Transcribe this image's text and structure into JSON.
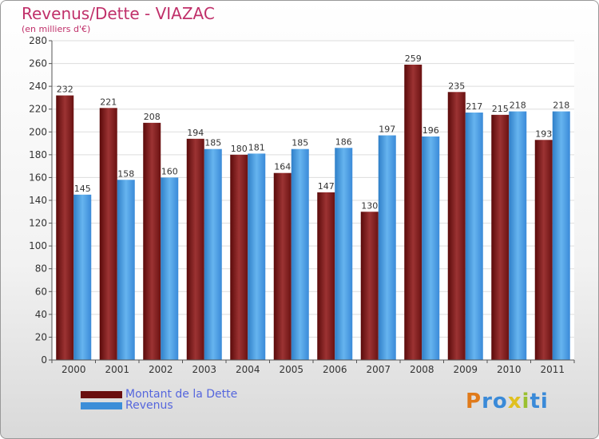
{
  "chart_data": {
    "type": "bar",
    "title": "Revenus/Dette - VIAZAC",
    "subtitle": "(en milliers d'€)",
    "categories": [
      "2000",
      "2001",
      "2002",
      "2003",
      "2004",
      "2005",
      "2006",
      "2007",
      "2008",
      "2009",
      "2010",
      "2011"
    ],
    "series": [
      {
        "name": "Montant de la Dette",
        "values": [
          232,
          221,
          208,
          194,
          180,
          164,
          147,
          130,
          259,
          235,
          215,
          193
        ]
      },
      {
        "name": "Revenus",
        "values": [
          145,
          158,
          160,
          185,
          181,
          185,
          186,
          197,
          196,
          217,
          218,
          218
        ]
      }
    ],
    "ylim": [
      0,
      280
    ],
    "ytick_step": 20,
    "grid": true,
    "legend": "bottom-left",
    "colors": {
      "debt": "#7a1a1a",
      "debt_light": "#9c3333",
      "revenue": "#3c8ed8",
      "revenue_light": "#62b0ee"
    }
  },
  "logo": {
    "letters": [
      "P",
      "r",
      "o",
      "x",
      "i",
      "t",
      "i"
    ],
    "colors": [
      "#e07a1a",
      "#3a8ad8",
      "#3a8ad8",
      "#e0c020",
      "#9ac030",
      "#3a8ad8",
      "#3a8ad8"
    ]
  }
}
